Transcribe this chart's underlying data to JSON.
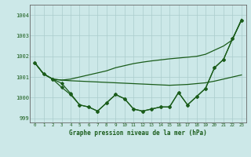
{
  "xlabel": "Graphe pression niveau de la mer (hPa)",
  "x_ticks": [
    0,
    1,
    2,
    3,
    4,
    5,
    6,
    7,
    8,
    9,
    10,
    11,
    12,
    13,
    14,
    15,
    16,
    17,
    18,
    19,
    20,
    21,
    22,
    23
  ],
  "ylim": [
    998.8,
    1004.5
  ],
  "yticks": [
    999,
    1000,
    1001,
    1002,
    1003,
    1004
  ],
  "xlim": [
    -0.5,
    23.5
  ],
  "bg_color": "#cce8e8",
  "grid_color": "#aacccc",
  "line_color": "#1a5c1a",
  "smooth1": [
    1001.7,
    1001.15,
    1000.9,
    1000.85,
    1000.82,
    1000.8,
    1000.78,
    1000.76,
    1000.74,
    1000.72,
    1000.7,
    1000.68,
    1000.66,
    1000.64,
    1000.62,
    1000.6,
    1000.62,
    1000.64,
    1000.68,
    1000.72,
    1000.8,
    1000.9,
    1001.0,
    1001.1
  ],
  "smooth2": [
    1001.7,
    1001.15,
    1000.9,
    1000.85,
    1000.9,
    1001.0,
    1001.1,
    1001.2,
    1001.3,
    1001.45,
    1001.55,
    1001.65,
    1001.72,
    1001.78,
    1001.83,
    1001.88,
    1001.92,
    1001.96,
    1002.0,
    1002.1,
    1002.3,
    1002.5,
    1002.8,
    1003.8
  ],
  "marked1": [
    1001.7,
    1001.15,
    1000.9,
    1000.5,
    1000.15,
    999.65,
    999.55,
    999.35,
    999.75,
    1000.15,
    999.95,
    999.45,
    999.35,
    999.45,
    999.55,
    999.55,
    1000.25,
    999.65,
    1000.05,
    1000.45,
    1001.45,
    1001.85,
    1002.85,
    1003.75
  ],
  "marked2": [
    1001.7,
    1001.15,
    1000.9,
    1000.7,
    1000.2,
    999.65,
    999.55,
    999.35,
    999.75,
    1000.15,
    999.95,
    999.45,
    999.35,
    999.45,
    999.55,
    999.55,
    1000.25,
    999.65,
    1000.05,
    1000.45,
    1001.45,
    1001.85,
    1002.85,
    1003.75
  ],
  "font_color": "#1a5c1a"
}
